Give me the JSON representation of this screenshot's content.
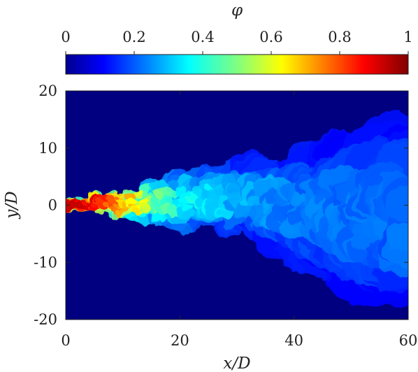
{
  "chart_data": {
    "type": "heatmap",
    "colorbar": {
      "label": "φ",
      "range": [
        0,
        1
      ],
      "ticks": [
        "0",
        "0.2",
        "0.4",
        "0.6",
        "0.8",
        "1"
      ],
      "colormap": "jet",
      "position": "top"
    },
    "xlabel": "x/D",
    "ylabel": "y/D",
    "xlim": [
      0,
      60
    ],
    "ylim": [
      -20,
      20
    ],
    "xticks": [
      "0",
      "20",
      "40",
      "60"
    ],
    "yticks": [
      "20",
      "10",
      "0",
      "-10",
      "-20"
    ],
    "background_value": 0,
    "grid": false,
    "jet_centerline": [
      {
        "x": 0,
        "y": 0
      },
      {
        "x": 10,
        "y": 0.3
      },
      {
        "x": 20,
        "y": 0.8
      },
      {
        "x": 30,
        "y": 1.5
      },
      {
        "x": 40,
        "y": -0.5
      },
      {
        "x": 50,
        "y": -1.5
      },
      {
        "x": 60,
        "y": -2
      }
    ],
    "jet_halfwidth": [
      {
        "x": 0,
        "w": 0.6
      },
      {
        "x": 5,
        "w": 1.5
      },
      {
        "x": 10,
        "w": 2.8
      },
      {
        "x": 20,
        "w": 4.5
      },
      {
        "x": 30,
        "w": 6
      },
      {
        "x": 40,
        "w": 8
      },
      {
        "x": 50,
        "w": 12
      },
      {
        "x": 60,
        "w": 15
      }
    ],
    "jet_peak_phi": [
      {
        "x": 0,
        "v": 0.92
      },
      {
        "x": 5,
        "v": 0.85
      },
      {
        "x": 10,
        "v": 0.68
      },
      {
        "x": 15,
        "v": 0.52
      },
      {
        "x": 20,
        "v": 0.42
      },
      {
        "x": 30,
        "v": 0.32
      },
      {
        "x": 40,
        "v": 0.26
      },
      {
        "x": 60,
        "v": 0.24
      }
    ],
    "colors": {
      "background": "#000080",
      "axis": "#222222"
    }
  }
}
